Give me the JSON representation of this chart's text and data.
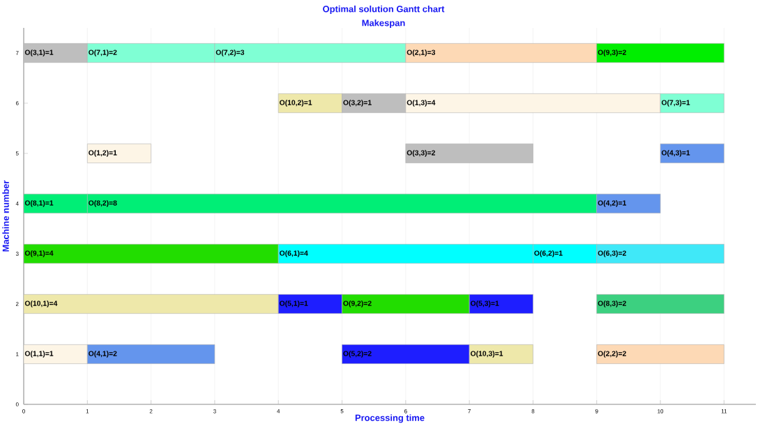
{
  "chart_data": {
    "type": "bar",
    "orientation": "horizontal",
    "title": "Optimal solution Gantt chart",
    "subtitle": "Makespan",
    "xlabel": "Processing time",
    "ylabel": "Machine number",
    "xlim": [
      0,
      11.5
    ],
    "xticks": [
      0,
      1,
      2,
      3,
      4,
      5,
      6,
      7,
      8,
      9,
      10,
      11
    ],
    "ylim": [
      0,
      7.5
    ],
    "yticks": [
      0,
      1,
      2,
      3,
      4,
      5,
      6,
      7
    ],
    "grid": "x",
    "legend": false,
    "series": [
      {
        "x": [
          1,
          2,
          3,
          4,
          5,
          6,
          7
        ],
        "base": [
          0,
          0,
          0,
          0,
          1,
          4,
          0
        ],
        "values": [
          1,
          4,
          4,
          1,
          1,
          1,
          1
        ],
        "colors": [
          "#fdf5e6",
          "#eee8aa",
          "#22dd00",
          "#00ee76",
          "#fdf5e6",
          "#eee8aa",
          "#bebebe"
        ],
        "value_labels": [
          "O(1,1)=1",
          "O(10,1)=4",
          "O(9,1)=4",
          "O(8,1)=1",
          "O(1,2)=1",
          "O(10,2)=1",
          "O(3,1)=1"
        ]
      },
      {
        "x": [
          1,
          2,
          3,
          4,
          5,
          6,
          7
        ],
        "base": [
          1,
          4,
          4,
          1,
          6,
          5,
          1
        ],
        "values": [
          2,
          1,
          4,
          8,
          2,
          1,
          2
        ],
        "colors": [
          "#6495ed",
          "#1e1eff",
          "#00ffff",
          "#00ee76",
          "#bebebe",
          "#bebebe",
          "#7fffd4"
        ],
        "value_labels": [
          "O(4,1)=2",
          "O(5,1)=1",
          "O(6,1)=4",
          "O(8,2)=8",
          "O(3,3)=2",
          "O(3,2)=1",
          "O(7,1)=2"
        ]
      },
      {
        "x": [
          1,
          2,
          3,
          4,
          5,
          6,
          7
        ],
        "base": [
          5,
          5,
          8,
          9,
          10,
          6,
          3
        ],
        "values": [
          2,
          2,
          1,
          1,
          1,
          4,
          3
        ],
        "colors": [
          "#1e1eff",
          "#22dd00",
          "#00ffff",
          "#6495ed",
          "#6495ed",
          "#fdf5e6",
          "#7fffd4"
        ],
        "value_labels": [
          "O(5,2)=2",
          "O(9,2)=2",
          "O(6,2)=1",
          "O(4,2)=1",
          "O(4,3)=1",
          "O(1,3)=4",
          "O(7,2)=3"
        ]
      },
      {
        "x": [
          1,
          2,
          3,
          6,
          7
        ],
        "base": [
          7,
          7,
          9,
          10,
          6
        ],
        "values": [
          1,
          1,
          2,
          1,
          3
        ],
        "colors": [
          "#eee8aa",
          "#1e1eff",
          "#40e8f8",
          "#7fffd4",
          "#fdd9b5"
        ],
        "value_labels": [
          "O(10,3)=1",
          "O(5,3)=1",
          "O(6,3)=2",
          "O(7,3)=1",
          "O(2,1)=3"
        ]
      },
      {
        "x": [
          1,
          2,
          7
        ],
        "base": [
          9,
          9,
          9
        ],
        "values": [
          2,
          2,
          2
        ],
        "colors": [
          "#fdd9b5",
          "#3cd080",
          "#00ee00"
        ],
        "value_labels": [
          "O(2,2)=2",
          "O(8,3)=2",
          "O(9,3)=2"
        ]
      }
    ]
  }
}
